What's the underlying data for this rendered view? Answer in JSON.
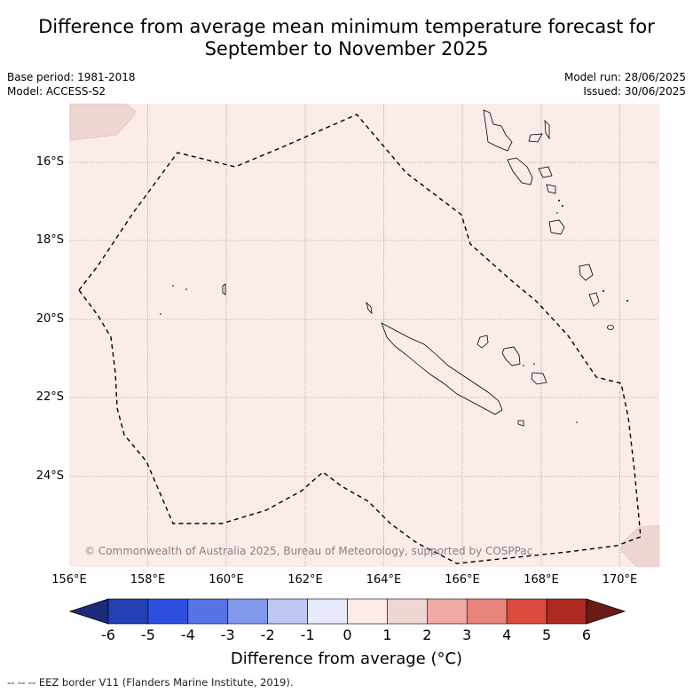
{
  "title": {
    "line1": "Difference from average mean minimum temperature forecast for",
    "line2": "September to November 2025"
  },
  "meta": {
    "base_period": "Base period: 1981-2018",
    "model": "Model: ACCESS-S2",
    "model_run": "Model run: 28/06/2025",
    "issued": "Issued: 30/06/2025"
  },
  "map": {
    "background_color": "#fbebe9",
    "land_outline_color": "#000000",
    "eez_color": "#000000",
    "lat_labels": [
      "16°S",
      "18°S",
      "20°S",
      "22°S",
      "24°S"
    ],
    "lon_labels": [
      "156°E",
      "158°E",
      "160°E",
      "162°E",
      "164°E",
      "166°E",
      "168°E",
      "170°E"
    ],
    "copyright": "© Commonwealth of Australia 2025, Bureau of Meteorology, supported by COSPPac"
  },
  "colorbar": {
    "title": "Difference from average (°C)",
    "ticks": [
      "-6",
      "-5",
      "-4",
      "-3",
      "-2",
      "-1",
      "0",
      "1",
      "2",
      "3",
      "4",
      "5",
      "6"
    ],
    "colors": [
      "#1c2a78",
      "#2440b4",
      "#2f4fe0",
      "#5674e6",
      "#8298ea",
      "#bfc7f3",
      "#e6eafa",
      "#fdebe8",
      "#f0d6d2",
      "#efaaa6",
      "#e8847c",
      "#dc4b3f",
      "#ad2921",
      "#6e1a14"
    ]
  },
  "footer": "--  --  -- EEZ border V11 (Flanders Marine Institute, 2019)."
}
